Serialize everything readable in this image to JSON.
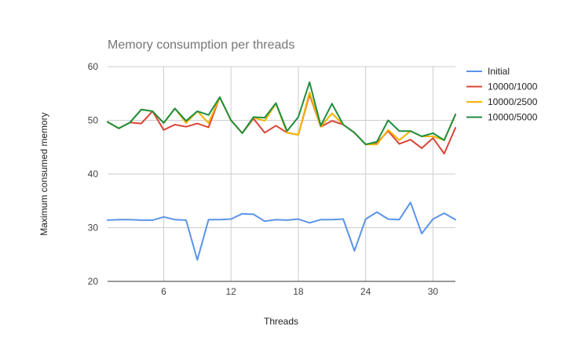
{
  "chart_data": {
    "type": "line",
    "title": "Memory consumption per threads",
    "xlabel": "Threads",
    "ylabel": "Maximum consumed memory",
    "xlim": [
      1,
      32
    ],
    "ylim": [
      20,
      60
    ],
    "x_ticks": [
      6,
      12,
      18,
      24,
      30
    ],
    "y_ticks": [
      20,
      30,
      40,
      50,
      60
    ],
    "grid": true,
    "legend_position": "right",
    "x": [
      1,
      2,
      3,
      4,
      5,
      6,
      7,
      8,
      9,
      10,
      11,
      12,
      13,
      14,
      15,
      16,
      17,
      18,
      19,
      20,
      21,
      22,
      23,
      24,
      25,
      26,
      27,
      28,
      29,
      30,
      31,
      32
    ],
    "series": [
      {
        "name": "Initial",
        "color": "#5b94e8",
        "values": [
          31.4,
          31.5,
          31.5,
          31.4,
          31.4,
          32.0,
          31.5,
          31.4,
          24.0,
          31.5,
          31.5,
          31.6,
          32.6,
          32.5,
          31.2,
          31.5,
          31.4,
          31.6,
          30.9,
          31.5,
          31.5,
          31.6,
          25.7,
          31.6,
          32.9,
          31.6,
          31.5,
          34.7,
          28.9,
          31.6,
          32.7,
          31.5
        ]
      },
      {
        "name": "10000/1000",
        "color": "#db4437",
        "values": [
          49.7,
          48.5,
          49.6,
          49.4,
          51.7,
          48.2,
          49.2,
          48.8,
          49.4,
          48.7,
          54.3,
          50.0,
          47.6,
          50.3,
          47.7,
          49.0,
          47.7,
          47.3,
          54.8,
          48.8,
          49.9,
          49.2,
          47.7,
          45.5,
          45.8,
          48.0,
          45.6,
          46.4,
          44.8,
          46.7,
          43.8,
          48.6
        ]
      },
      {
        "name": "10000/2500",
        "color": "#f4b400",
        "values": [
          49.7,
          48.5,
          49.6,
          52.0,
          51.7,
          49.5,
          52.2,
          49.5,
          51.7,
          49.5,
          54.3,
          50.0,
          47.6,
          50.5,
          49.9,
          53.1,
          47.7,
          47.3,
          55.2,
          48.8,
          51.3,
          49.2,
          47.7,
          45.5,
          45.5,
          48.2,
          46.3,
          48.0,
          47.0,
          47.0,
          46.3,
          51.0
        ]
      },
      {
        "name": "10000/5000",
        "color": "#1e8e3e",
        "values": [
          49.7,
          48.5,
          49.6,
          52.0,
          51.7,
          49.5,
          52.2,
          49.9,
          51.7,
          51.0,
          54.3,
          50.0,
          47.6,
          50.6,
          50.5,
          53.2,
          48.0,
          50.6,
          57.1,
          49.0,
          53.1,
          49.2,
          47.7,
          45.5,
          46.0,
          50.0,
          48.0,
          48.0,
          47.0,
          47.6,
          46.3,
          51.1
        ]
      }
    ]
  }
}
